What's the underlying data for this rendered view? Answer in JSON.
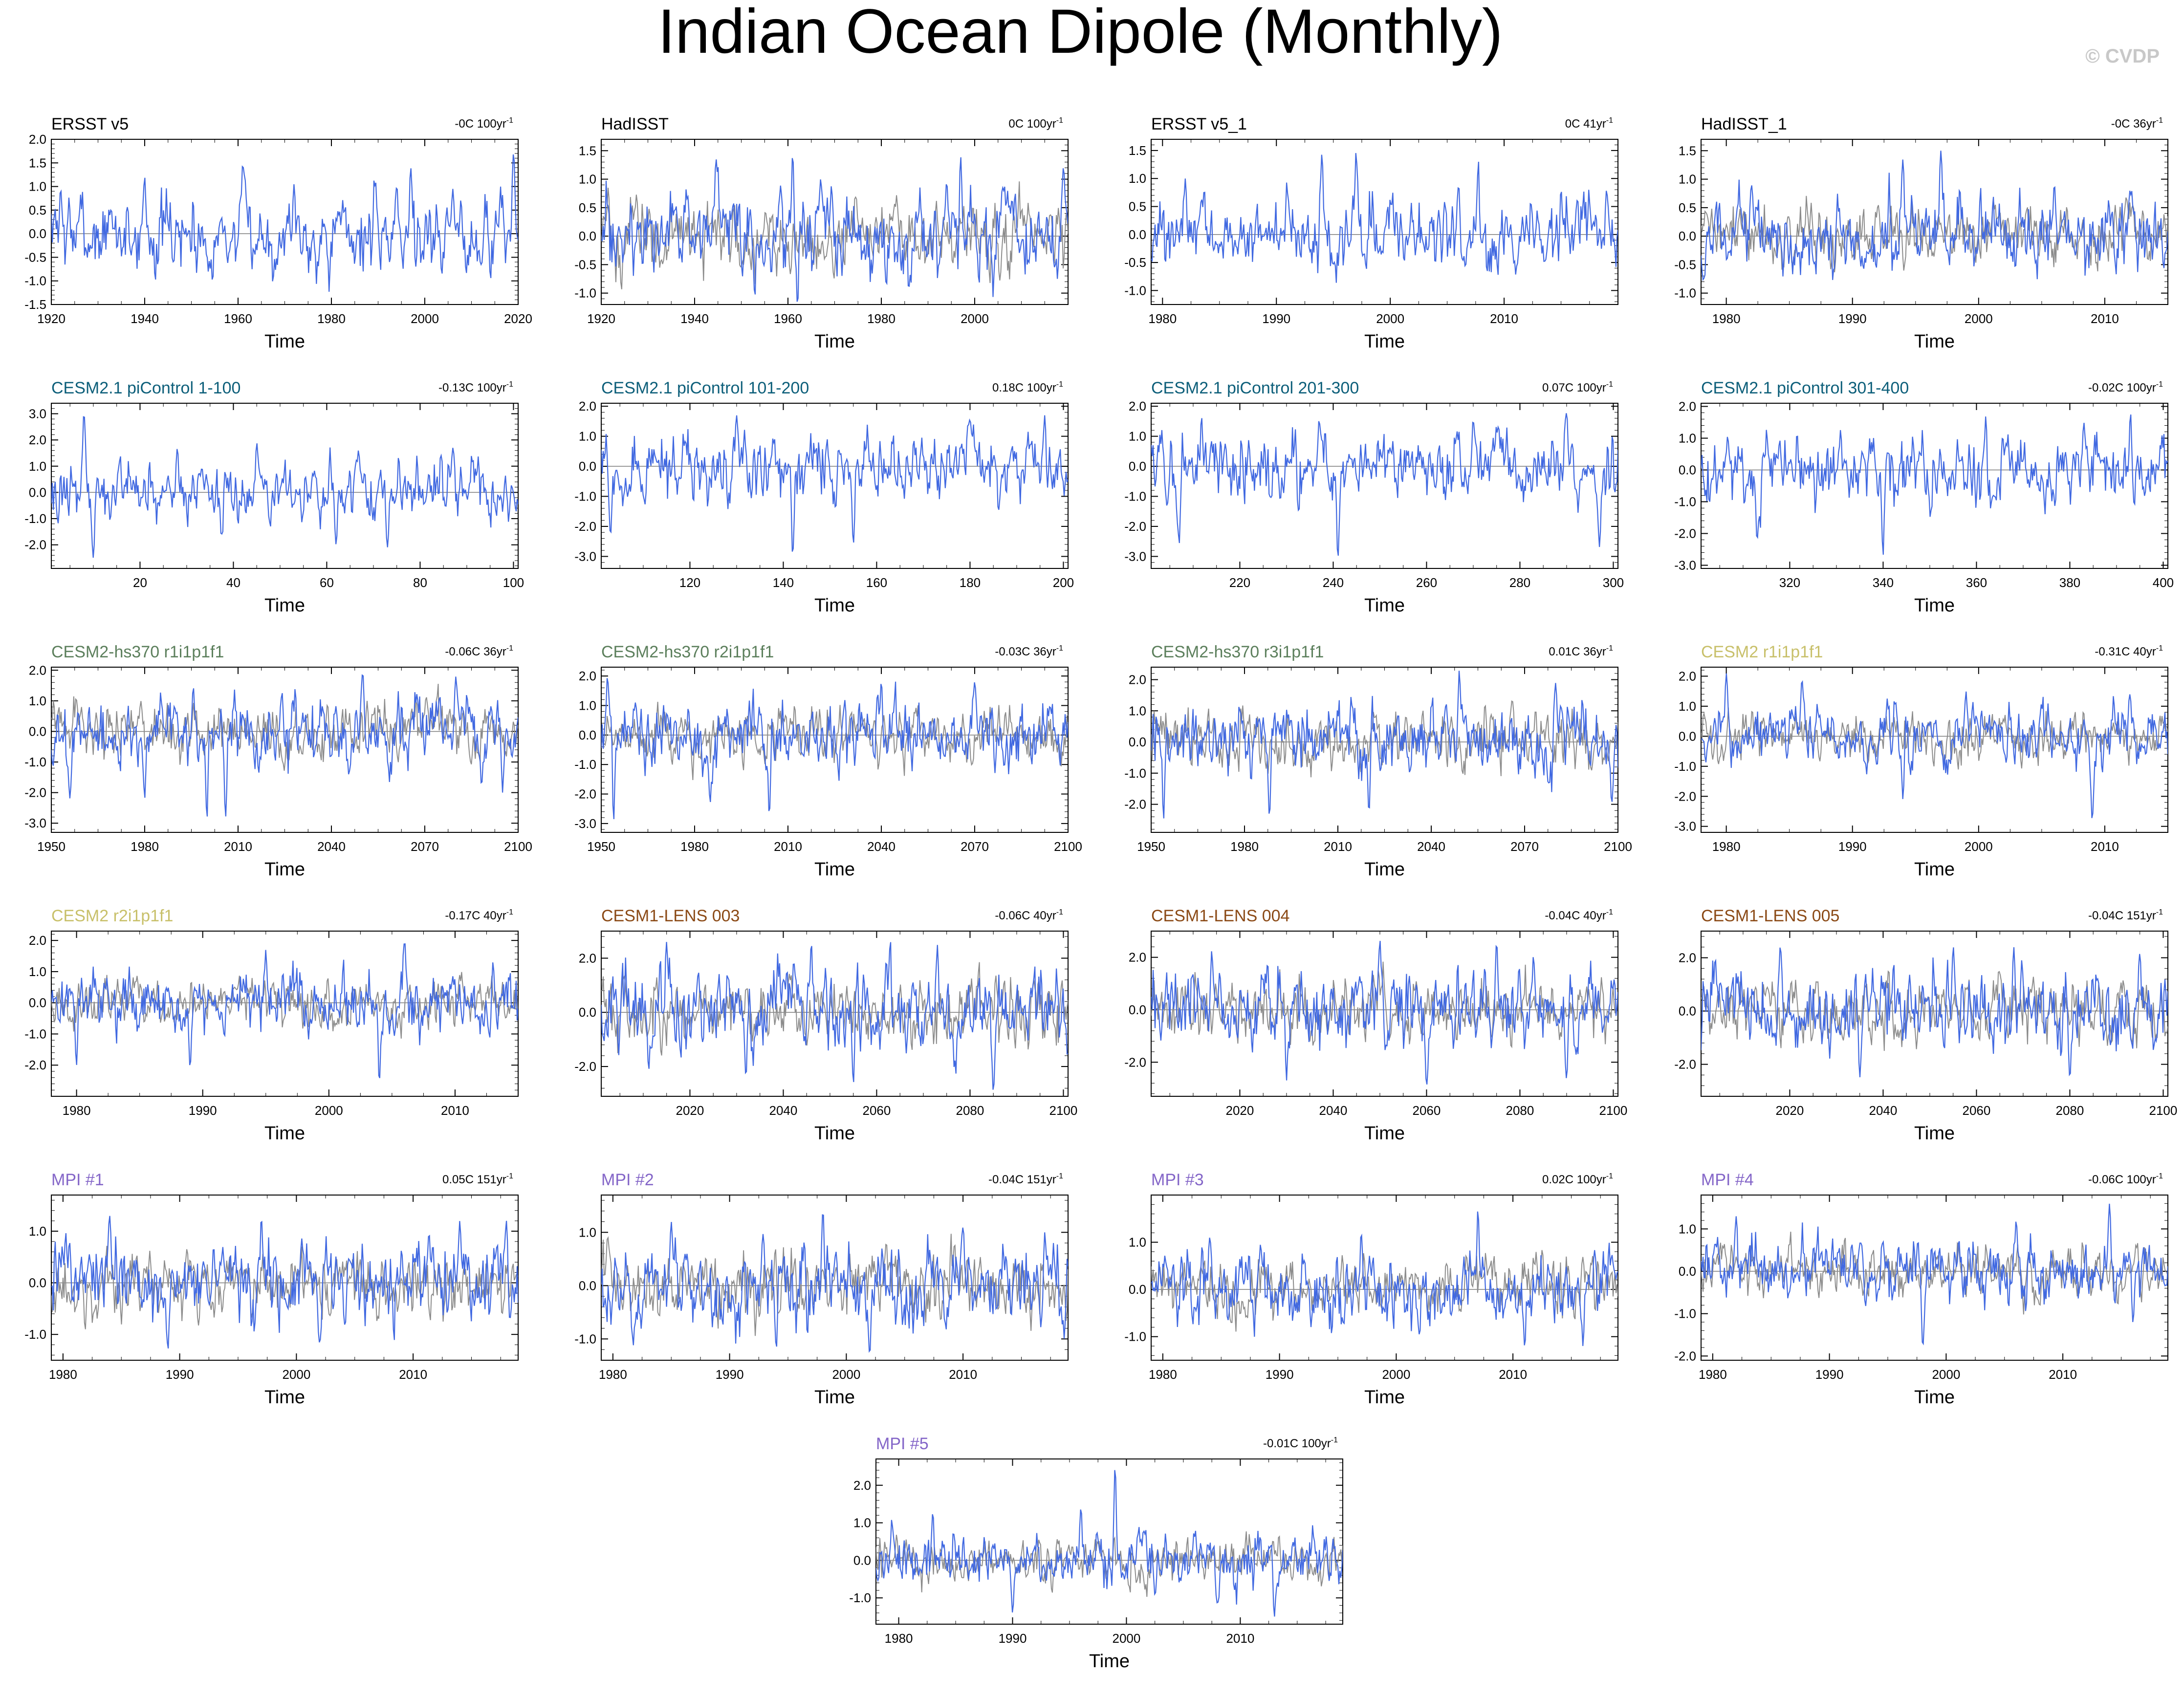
{
  "title": "Indian Ocean Dipole (Monthly)",
  "watermark": "© CVDP",
  "colors": {
    "series": "#4169e1",
    "reference": "#8c8c8c",
    "zero_line": "#7a7a7a",
    "title_obs": "#000000",
    "title_picontrol": "#0d5f7a",
    "title_hs370": "#5c7f5c",
    "title_cesm2": "#c8c06a",
    "title_lens": "#8b4a16",
    "title_mpi": "#8466c8",
    "watermark": "#c8c8c8"
  },
  "chart_data": [
    {
      "type": "line",
      "title": "ERSST v5",
      "trend": "-0C 100yr",
      "trend_unit_exp": "-1",
      "title_color": "title_obs",
      "xlabel": "Time",
      "xlim": [
        1920,
        2020
      ],
      "xticks": [
        1920,
        1940,
        1960,
        1980,
        2000,
        2020
      ],
      "ylim": [
        -1.5,
        2.0
      ],
      "yticks": [
        "2.0",
        "1.5",
        "1.0",
        "0.5",
        "0.0",
        "-0.5",
        "-1.0",
        "-1.5"
      ],
      "reference": false,
      "amp": 0.45,
      "peaks": [
        [
          1922,
          0.95
        ],
        [
          1940,
          1.2
        ],
        [
          1961,
          1.45
        ],
        [
          1972,
          1.05
        ],
        [
          1994,
          1.05
        ],
        [
          1997,
          1.4
        ],
        [
          2006,
          0.95
        ],
        [
          2019,
          1.7
        ]
      ]
    },
    {
      "type": "line",
      "title": "HadISST",
      "trend": "0C 100yr",
      "trend_unit_exp": "-1",
      "title_color": "title_obs",
      "xlabel": "Time",
      "xlim": [
        1920,
        2020
      ],
      "xticks": [
        1920,
        1940,
        1960,
        1980,
        2000
      ],
      "ylim": [
        -1.2,
        1.7
      ],
      "yticks": [
        "1.5",
        "1.0",
        "0.5",
        "0.0",
        "-0.5",
        "-1.0"
      ],
      "reference": true,
      "amp": 0.4,
      "peaks": [
        [
          1961,
          1.45
        ],
        [
          1967,
          1.0
        ],
        [
          1994,
          1.0
        ],
        [
          1997,
          1.4
        ],
        [
          2006,
          0.85
        ],
        [
          2019,
          1.2
        ]
      ]
    },
    {
      "type": "line",
      "title": "ERSST v5_1",
      "trend": "0C 41yr",
      "trend_unit_exp": "-1",
      "title_color": "title_obs",
      "xlabel": "Time",
      "xlim": [
        1979,
        2020
      ],
      "xticks": [
        1980,
        1990,
        2000,
        2010
      ],
      "ylim": [
        -1.25,
        1.7
      ],
      "yticks": [
        "1.5",
        "1.0",
        "0.5",
        "0.0",
        "-0.5",
        "-1.0"
      ],
      "reference": false,
      "amp": 0.35,
      "peaks": [
        [
          1982,
          1.0
        ],
        [
          1994,
          1.45
        ],
        [
          1997,
          1.5
        ],
        [
          2006,
          0.9
        ],
        [
          2015,
          0.8
        ],
        [
          2019,
          0.8
        ]
      ]
    },
    {
      "type": "line",
      "title": "HadISST_1",
      "trend": "-0C 36yr",
      "trend_unit_exp": "-1",
      "title_color": "title_obs",
      "xlabel": "Time",
      "xlim": [
        1978,
        2015
      ],
      "xticks": [
        1980,
        1990,
        2000,
        2010
      ],
      "ylim": [
        -1.2,
        1.7
      ],
      "yticks": [
        "1.5",
        "1.0",
        "0.5",
        "0.0",
        "-0.5",
        "-1.0"
      ],
      "reference": true,
      "amp": 0.35,
      "peaks": [
        [
          1982,
          0.9
        ],
        [
          1994,
          1.35
        ],
        [
          1997,
          1.5
        ],
        [
          2006,
          0.9
        ],
        [
          2012,
          0.8
        ]
      ]
    },
    {
      "type": "line",
      "title": "CESM2.1 piControl 1-100",
      "trend": "-0.13C 100yr",
      "trend_unit_exp": "-1",
      "title_color": "title_picontrol",
      "xlabel": "Time",
      "xlim": [
        1,
        101
      ],
      "xticks": [
        20,
        40,
        60,
        80,
        100
      ],
      "ylim": [
        -2.9,
        3.4
      ],
      "yticks": [
        "3.0",
        "2.0",
        "1.0",
        "0.0",
        "-1.0",
        "-2.0"
      ],
      "reference": false,
      "amp": 0.6,
      "peaks": [
        [
          8,
          3.1
        ],
        [
          10,
          -2.5
        ],
        [
          28,
          1.7
        ],
        [
          45,
          1.9
        ],
        [
          62,
          -2.0
        ],
        [
          73,
          -2.1
        ],
        [
          87,
          1.7
        ]
      ]
    },
    {
      "type": "line",
      "title": "CESM2.1 piControl 101-200",
      "trend": "0.18C 100yr",
      "trend_unit_exp": "-1",
      "title_color": "title_picontrol",
      "xlabel": "Time",
      "xlim": [
        101,
        201
      ],
      "xticks": [
        120,
        140,
        160,
        180,
        200
      ],
      "ylim": [
        -3.4,
        2.1
      ],
      "yticks": [
        "2.0",
        "1.0",
        "0.0",
        "-1.0",
        "-2.0",
        "-3.0"
      ],
      "reference": false,
      "amp": 0.6,
      "peaks": [
        [
          103,
          -2.3
        ],
        [
          130,
          1.7
        ],
        [
          142,
          -3.0
        ],
        [
          155,
          -2.6
        ],
        [
          180,
          1.6
        ],
        [
          196,
          1.7
        ]
      ]
    },
    {
      "type": "line",
      "title": "CESM2.1 piControl 201-300",
      "trend": "0.07C 100yr",
      "trend_unit_exp": "-1",
      "title_color": "title_picontrol",
      "xlabel": "Time",
      "xlim": [
        201,
        301
      ],
      "xticks": [
        220,
        240,
        260,
        280,
        300
      ],
      "ylim": [
        -3.4,
        2.1
      ],
      "yticks": [
        "2.0",
        "1.0",
        "0.0",
        "-1.0",
        "-2.0",
        "-3.0"
      ],
      "reference": false,
      "amp": 0.6,
      "peaks": [
        [
          207,
          -2.6
        ],
        [
          237,
          1.6
        ],
        [
          241,
          -3.1
        ],
        [
          270,
          1.5
        ],
        [
          290,
          1.8
        ],
        [
          297,
          -2.7
        ]
      ]
    },
    {
      "type": "line",
      "title": "CESM2.1 piControl 301-400",
      "trend": "-0.02C 100yr",
      "trend_unit_exp": "-1",
      "title_color": "title_picontrol",
      "xlabel": "Time",
      "xlim": [
        301,
        401
      ],
      "xticks": [
        320,
        340,
        360,
        380,
        400
      ],
      "ylim": [
        -3.1,
        2.1
      ],
      "yticks": [
        "2.0",
        "1.0",
        "0.0",
        "-1.0",
        "-2.0",
        "-3.0"
      ],
      "reference": false,
      "amp": 0.6,
      "peaks": [
        [
          313,
          -2.2
        ],
        [
          340,
          -2.7
        ],
        [
          362,
          1.7
        ],
        [
          383,
          1.5
        ],
        [
          393,
          1.8
        ]
      ]
    },
    {
      "type": "line",
      "title": "CESM2-hs370 r1i1p1f1",
      "trend": "-0.06C 36yr",
      "trend_unit_exp": "-1",
      "title_color": "title_hs370",
      "xlabel": "Time",
      "xlim": [
        1950,
        2100
      ],
      "xticks": [
        1950,
        1980,
        2010,
        2040,
        2070,
        2100
      ],
      "ylim": [
        -3.3,
        2.1
      ],
      "yticks": [
        "2.0",
        "1.0",
        "0.0",
        "-1.0",
        "-2.0",
        "-3.0"
      ],
      "reference": true,
      "amp": 0.6,
      "peaks": [
        [
          1956,
          -2.2
        ],
        [
          1980,
          -2.2
        ],
        [
          2000,
          -2.9
        ],
        [
          2006,
          -2.8
        ],
        [
          2050,
          1.9
        ],
        [
          2080,
          1.8
        ],
        [
          2095,
          -2.0
        ]
      ]
    },
    {
      "type": "line",
      "title": "CESM2-hs370 r2i1p1f1",
      "trend": "-0.03C 36yr",
      "trend_unit_exp": "-1",
      "title_color": "title_hs370",
      "xlabel": "Time",
      "xlim": [
        1950,
        2100
      ],
      "xticks": [
        1950,
        1980,
        2010,
        2040,
        2070,
        2100
      ],
      "ylim": [
        -3.3,
        2.3
      ],
      "yticks": [
        "2.0",
        "1.0",
        "0.0",
        "-1.0",
        "-2.0",
        "-3.0"
      ],
      "reference": true,
      "amp": 0.6,
      "peaks": [
        [
          1952,
          2.0
        ],
        [
          1954,
          -2.9
        ],
        [
          1985,
          -2.3
        ],
        [
          2004,
          -2.7
        ],
        [
          2040,
          1.8
        ],
        [
          2070,
          1.8
        ]
      ]
    },
    {
      "type": "line",
      "title": "CESM2-hs370 r3i1p1f1",
      "trend": "0.01C 36yr",
      "trend_unit_exp": "-1",
      "title_color": "title_hs370",
      "xlabel": "Time",
      "xlim": [
        1950,
        2100
      ],
      "xticks": [
        1950,
        1980,
        2010,
        2040,
        2070,
        2100
      ],
      "ylim": [
        -2.9,
        2.4
      ],
      "yticks": [
        "2.0",
        "1.0",
        "0.0",
        "-1.0",
        "-2.0"
      ],
      "reference": true,
      "amp": 0.6,
      "peaks": [
        [
          1954,
          -2.5
        ],
        [
          1988,
          -2.4
        ],
        [
          2020,
          -2.3
        ],
        [
          2049,
          2.3
        ],
        [
          2080,
          1.9
        ],
        [
          2098,
          -2.0
        ]
      ]
    },
    {
      "type": "line",
      "title": "CESM2 r1i1p1f1",
      "trend": "-0.31C 40yr",
      "trend_unit_exp": "-1",
      "title_color": "title_cesm2",
      "xlabel": "Time",
      "xlim": [
        1978,
        2015
      ],
      "xticks": [
        1980,
        1990,
        2000,
        2010
      ],
      "ylim": [
        -3.2,
        2.3
      ],
      "yticks": [
        "2.0",
        "1.0",
        "0.0",
        "-1.0",
        "-2.0",
        "-3.0"
      ],
      "reference": true,
      "amp": 0.5,
      "peaks": [
        [
          1980,
          2.1
        ],
        [
          1986,
          1.9
        ],
        [
          1994,
          -2.1
        ],
        [
          1999,
          1.5
        ],
        [
          2009,
          -2.8
        ],
        [
          2012,
          1.4
        ]
      ]
    },
    {
      "type": "line",
      "title": "CESM2 r2i1p1f1",
      "trend": "-0.17C 40yr",
      "trend_unit_exp": "-1",
      "title_color": "title_cesm2",
      "xlabel": "Time",
      "xlim": [
        1978,
        2015
      ],
      "xticks": [
        1980,
        1990,
        2000,
        2010
      ],
      "ylim": [
        -3.0,
        2.3
      ],
      "yticks": [
        "2.0",
        "1.0",
        "0.0",
        "-1.0",
        "-2.0"
      ],
      "reference": true,
      "amp": 0.5,
      "peaks": [
        [
          1980,
          -2.0
        ],
        [
          1989,
          -2.1
        ],
        [
          1995,
          1.7
        ],
        [
          2004,
          -2.5
        ],
        [
          2006,
          2.0
        ],
        [
          2013,
          1.3
        ]
      ]
    },
    {
      "type": "line",
      "title": "CESM1-LENS 003",
      "trend": "-0.06C 40yr",
      "trend_unit_exp": "-1",
      "title_color": "title_lens",
      "xlabel": "Time",
      "xlim": [
        2001,
        2101
      ],
      "xticks": [
        2020,
        2040,
        2060,
        2080,
        2100
      ],
      "ylim": [
        -3.1,
        3.0
      ],
      "yticks": [
        "2.0",
        "0.0",
        "-2.0"
      ],
      "reference": true,
      "amp": 0.8,
      "peaks": [
        [
          2015,
          2.6
        ],
        [
          2032,
          -2.5
        ],
        [
          2046,
          2.6
        ],
        [
          2055,
          -2.7
        ],
        [
          2073,
          2.5
        ],
        [
          2085,
          -2.9
        ]
      ]
    },
    {
      "type": "line",
      "title": "CESM1-LENS 004",
      "trend": "-0.04C 40yr",
      "trend_unit_exp": "-1",
      "title_color": "title_lens",
      "xlabel": "Time",
      "xlim": [
        2001,
        2101
      ],
      "xticks": [
        2020,
        2040,
        2060,
        2080,
        2100
      ],
      "ylim": [
        -3.3,
        3.0
      ],
      "yticks": [
        "2.0",
        "0.0",
        "-2.0"
      ],
      "reference": true,
      "amp": 0.8,
      "peaks": [
        [
          2014,
          2.3
        ],
        [
          2030,
          -2.7
        ],
        [
          2050,
          2.7
        ],
        [
          2060,
          -2.9
        ],
        [
          2075,
          2.5
        ],
        [
          2090,
          -2.7
        ]
      ]
    },
    {
      "type": "line",
      "title": "CESM1-LENS 005",
      "trend": "-0.04C 151yr",
      "trend_unit_exp": "-1",
      "title_color": "title_lens",
      "xlabel": "Time",
      "xlim": [
        2001,
        2101
      ],
      "xticks": [
        2020,
        2040,
        2060,
        2080,
        2100
      ],
      "ylim": [
        -3.2,
        3.0
      ],
      "yticks": [
        "2.0",
        "0.0",
        "-2.0"
      ],
      "reference": true,
      "amp": 0.8,
      "peaks": [
        [
          2018,
          2.5
        ],
        [
          2035,
          -2.5
        ],
        [
          2055,
          2.5
        ],
        [
          2068,
          2.4
        ],
        [
          2080,
          -2.5
        ],
        [
          2095,
          2.2
        ]
      ]
    },
    {
      "type": "line",
      "title": "MPI #1",
      "trend": "0.05C 151yr",
      "trend_unit_exp": "-1",
      "title_color": "title_mpi",
      "xlabel": "Time",
      "xlim": [
        1979,
        2019
      ],
      "xticks": [
        1980,
        1990,
        2000,
        2010
      ],
      "ylim": [
        -1.5,
        1.7
      ],
      "yticks": [
        "1.0",
        "0.0",
        "-1.0"
      ],
      "reference": true,
      "amp": 0.4,
      "peaks": [
        [
          1984,
          1.3
        ],
        [
          1989,
          -1.3
        ],
        [
          1997,
          1.3
        ],
        [
          2002,
          -1.2
        ],
        [
          2014,
          1.2
        ],
        [
          2018,
          1.2
        ]
      ]
    },
    {
      "type": "line",
      "title": "MPI #2",
      "trend": "-0.04C 151yr",
      "trend_unit_exp": "-1",
      "title_color": "title_mpi",
      "xlabel": "Time",
      "xlim": [
        1979,
        2019
      ],
      "xticks": [
        1980,
        1990,
        2000,
        2010
      ],
      "ylim": [
        -1.4,
        1.7
      ],
      "yticks": [
        "1.0",
        "0.0",
        "-1.0"
      ],
      "reference": true,
      "amp": 0.4,
      "peaks": [
        [
          1985,
          1.2
        ],
        [
          1994,
          -1.2
        ],
        [
          1998,
          1.4
        ],
        [
          2002,
          -1.3
        ],
        [
          2010,
          1.1
        ],
        [
          2017,
          1.0
        ]
      ]
    },
    {
      "type": "line",
      "title": "MPI #3",
      "trend": "0.02C 100yr",
      "trend_unit_exp": "-1",
      "title_color": "title_mpi",
      "xlabel": "Time",
      "xlim": [
        1979,
        2019
      ],
      "xticks": [
        1980,
        1990,
        2000,
        2010
      ],
      "ylim": [
        -1.5,
        2.0
      ],
      "yticks": [
        "1.0",
        "0.0",
        "-1.0"
      ],
      "reference": true,
      "amp": 0.4,
      "peaks": [
        [
          1984,
          1.1
        ],
        [
          1997,
          1.2
        ],
        [
          2002,
          -1.0
        ],
        [
          2007,
          1.7
        ],
        [
          2011,
          -1.2
        ],
        [
          2016,
          -1.2
        ]
      ]
    },
    {
      "type": "line",
      "title": "MPI #4",
      "trend": "-0.06C 100yr",
      "trend_unit_exp": "-1",
      "title_color": "title_mpi",
      "xlabel": "Time",
      "xlim": [
        1979,
        2019
      ],
      "xticks": [
        1980,
        1990,
        2000,
        2010
      ],
      "ylim": [
        -2.1,
        1.8
      ],
      "yticks": [
        "1.0",
        "0.0",
        "-1.0",
        "-2.0"
      ],
      "reference": true,
      "amp": 0.4,
      "peaks": [
        [
          1982,
          1.3
        ],
        [
          1998,
          -1.8
        ],
        [
          2006,
          1.2
        ],
        [
          2014,
          1.6
        ],
        [
          2016,
          -1.2
        ]
      ]
    },
    {
      "type": "line",
      "title": "MPI #5",
      "trend": "-0.01C 100yr",
      "trend_unit_exp": "-1",
      "title_color": "title_mpi",
      "xlabel": "Time",
      "xlim": [
        1978,
        2019
      ],
      "xticks": [
        1980,
        1990,
        2000,
        2010
      ],
      "ylim": [
        -1.7,
        2.7
      ],
      "yticks": [
        "2.0",
        "1.0",
        "0.0",
        "-1.0"
      ],
      "reference": true,
      "amp": 0.4,
      "peaks": [
        [
          1983,
          1.3
        ],
        [
          1990,
          -1.4
        ],
        [
          1996,
          1.4
        ],
        [
          1999,
          2.5
        ],
        [
          2008,
          -1.2
        ],
        [
          2013,
          -1.5
        ]
      ]
    }
  ]
}
